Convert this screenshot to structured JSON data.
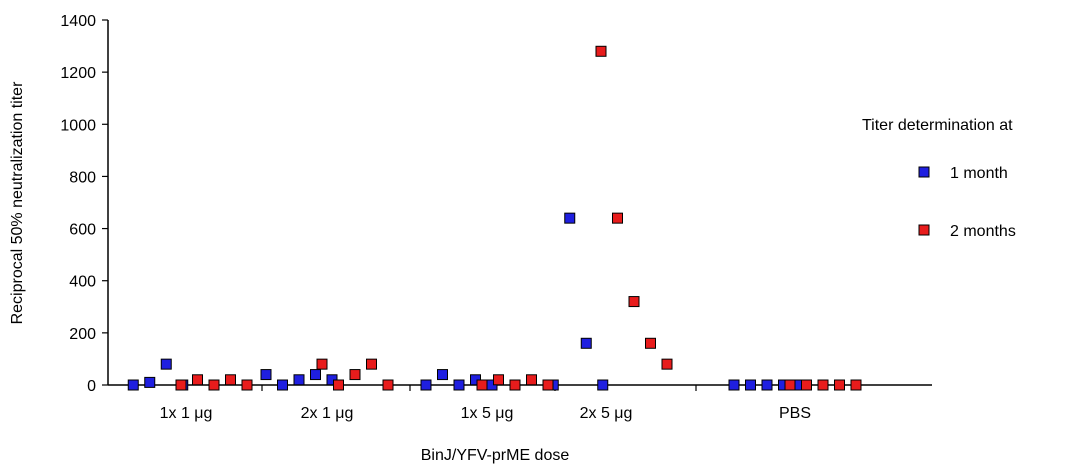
{
  "chart_data": {
    "type": "scatter",
    "title": "",
    "xlabel": "BinJ/YFV-prME dose",
    "ylabel": "Reciprocal 50% neutralization titer",
    "ylim": [
      0,
      1400
    ],
    "yticks": [
      0,
      200,
      400,
      600,
      800,
      1000,
      1200,
      1400
    ],
    "categories": [
      "1x 1 μg",
      "2x 1 μg",
      "1x 5 μg",
      "2x 5 μg",
      "PBS"
    ],
    "grid": false,
    "legend": {
      "title": "Titer determination at",
      "placement": "right"
    },
    "series": [
      {
        "name": "1 month",
        "color": "#1f1fe0",
        "groups": [
          [
            0,
            10,
            80,
            0
          ],
          [
            40,
            0,
            20,
            40,
            20
          ],
          [
            0,
            40,
            0,
            20,
            0
          ],
          [
            0,
            640,
            160,
            0
          ],
          [
            0,
            0,
            0,
            0,
            0
          ]
        ]
      },
      {
        "name": "2 months",
        "color": "#e81c1c",
        "groups": [
          [
            0,
            20,
            0,
            20,
            0
          ],
          [
            80,
            0,
            40,
            80,
            0
          ],
          [
            0,
            20,
            0,
            20,
            0
          ],
          [
            1280,
            640,
            320,
            160,
            80
          ],
          [
            0,
            0,
            0,
            0,
            0
          ]
        ]
      }
    ]
  }
}
